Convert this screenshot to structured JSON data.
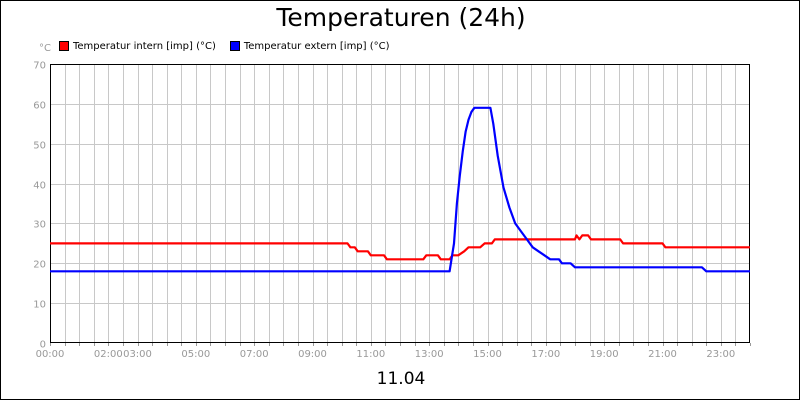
{
  "chart_data": {
    "type": "line",
    "title": "Temperaturen (24h)",
    "ylabel": "°C",
    "xlabel": "11.04",
    "ylim": [
      0,
      70
    ],
    "yticks": [
      0,
      10,
      20,
      30,
      40,
      50,
      60,
      70
    ],
    "xlim": [
      0,
      24
    ],
    "xtick_labels": [
      {
        "x": 0,
        "label": "00:00"
      },
      {
        "x": 2,
        "label": "02:00"
      },
      {
        "x": 3,
        "label": "03:00"
      },
      {
        "x": 5,
        "label": "05:00"
      },
      {
        "x": 7,
        "label": "07:00"
      },
      {
        "x": 9,
        "label": "09:00"
      },
      {
        "x": 11,
        "label": "11:00"
      },
      {
        "x": 13,
        "label": "13:00"
      },
      {
        "x": 15,
        "label": "15:00"
      },
      {
        "x": 17,
        "label": "17:00"
      },
      {
        "x": 19,
        "label": "19:00"
      },
      {
        "x": 21,
        "label": "21:00"
      },
      {
        "x": 23,
        "label": "23:00"
      }
    ],
    "grid": true,
    "legend_position": "top-left",
    "series": [
      {
        "name": "Temperatur intern [imp] (°C)",
        "color": "#ff0000",
        "points": [
          [
            0,
            25
          ],
          [
            10.2,
            25
          ],
          [
            10.3,
            24
          ],
          [
            10.45,
            24
          ],
          [
            10.55,
            23
          ],
          [
            10.9,
            23
          ],
          [
            11.0,
            22
          ],
          [
            11.45,
            22
          ],
          [
            11.55,
            21
          ],
          [
            12.8,
            21
          ],
          [
            12.9,
            22
          ],
          [
            13.3,
            22
          ],
          [
            13.4,
            21
          ],
          [
            13.7,
            21
          ],
          [
            13.8,
            22
          ],
          [
            14.0,
            22
          ],
          [
            14.2,
            23
          ],
          [
            14.35,
            24
          ],
          [
            14.75,
            24
          ],
          [
            14.9,
            25
          ],
          [
            15.15,
            25
          ],
          [
            15.25,
            26
          ],
          [
            18.0,
            26
          ],
          [
            18.05,
            27
          ],
          [
            18.15,
            26
          ],
          [
            18.25,
            27
          ],
          [
            18.45,
            27
          ],
          [
            18.55,
            26
          ],
          [
            19.55,
            26
          ],
          [
            19.65,
            25
          ],
          [
            21.0,
            25
          ],
          [
            21.1,
            24
          ],
          [
            24.0,
            24
          ]
        ]
      },
      {
        "name": "Temperatur extern [imp] (°C)",
        "color": "#0000ff",
        "points": [
          [
            0,
            18
          ],
          [
            13.7,
            18
          ],
          [
            13.85,
            25
          ],
          [
            13.95,
            35
          ],
          [
            14.05,
            42
          ],
          [
            14.15,
            48
          ],
          [
            14.25,
            53
          ],
          [
            14.35,
            56
          ],
          [
            14.45,
            58
          ],
          [
            14.55,
            59
          ],
          [
            15.1,
            59
          ],
          [
            15.2,
            55
          ],
          [
            15.35,
            47
          ],
          [
            15.55,
            39
          ],
          [
            15.75,
            34
          ],
          [
            15.95,
            30
          ],
          [
            16.15,
            28
          ],
          [
            16.35,
            26
          ],
          [
            16.55,
            24
          ],
          [
            16.75,
            23
          ],
          [
            16.95,
            22
          ],
          [
            17.15,
            21
          ],
          [
            17.45,
            21
          ],
          [
            17.55,
            20
          ],
          [
            17.85,
            20
          ],
          [
            18.0,
            19
          ],
          [
            22.35,
            19
          ],
          [
            22.5,
            18
          ],
          [
            24.0,
            18
          ]
        ]
      }
    ]
  }
}
